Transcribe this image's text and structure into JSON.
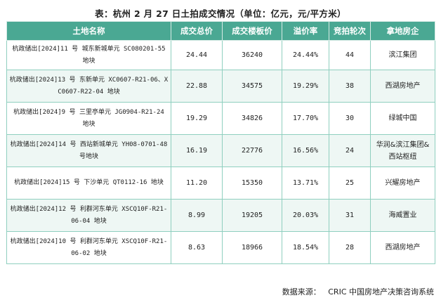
{
  "title": "表：杭州 2 月 27 日土拍成交情况（单位：亿元，元/平方米）",
  "table": {
    "headers": [
      "土地名称",
      "成交总价",
      "成交楼板价",
      "溢价率",
      "竞拍轮次",
      "拿地房企"
    ],
    "rows": [
      {
        "name": "杭政储出[2024]11 号 城东新城单元 SC080201-55 地块",
        "total": "24.44",
        "floor_price": "36240",
        "premium": "24.44%",
        "rounds": "44",
        "winner": "滨江集团"
      },
      {
        "name": "杭政储出[2024]13 号 东新单元 XC0607-R21-06、XC0607-R22-04 地块",
        "total": "22.88",
        "floor_price": "34575",
        "premium": "19.29%",
        "rounds": "38",
        "winner": "西湖房地产"
      },
      {
        "name": "杭政储出[2024]9 号 三里亭单元 JG0904-R21-24 地块",
        "total": "19.29",
        "floor_price": "34826",
        "premium": "17.70%",
        "rounds": "30",
        "winner": "绿城中国"
      },
      {
        "name": "杭政储出[2024]14 号 西站新城单元 YH08-0701-48 号地块",
        "total": "16.19",
        "floor_price": "22776",
        "premium": "16.56%",
        "rounds": "24",
        "winner": "华润&滨江集团&西站枢纽"
      },
      {
        "name": "杭政储出[2024]15 号 下沙单元 QT0112-16 地块",
        "total": "11.20",
        "floor_price": "15350",
        "premium": "13.71%",
        "rounds": "25",
        "winner": "兴耀房地产"
      },
      {
        "name": "杭政储出[2024]12 号 利群河东单元 XSCQ10F-R21-06-04 地块",
        "total": "8.99",
        "floor_price": "19205",
        "premium": "20.03%",
        "rounds": "31",
        "winner": "海威置业"
      },
      {
        "name": "杭政储出[2024]10 号 利群河东单元 XSCQ10F-R21-06-02 地块",
        "total": "8.63",
        "floor_price": "18966",
        "premium": "18.54%",
        "rounds": "28",
        "winner": "西湖房地产"
      }
    ]
  },
  "source": "数据来源：   CRIC 中国房地产决策咨询系统",
  "colors": {
    "header_bg": "#4aa893",
    "header_text": "#ffffff",
    "stripe_bg": "#eef7f4",
    "border": "#8fcfbf"
  }
}
